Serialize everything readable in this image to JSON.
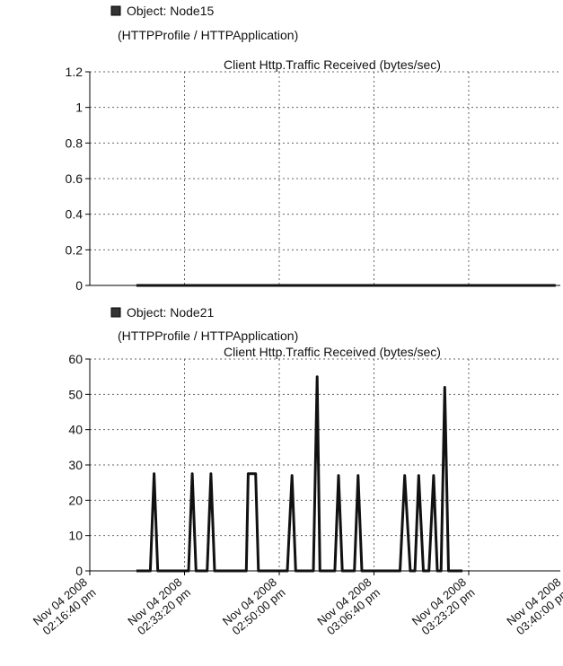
{
  "chart_data": [
    {
      "type": "line",
      "legend": "Object: Node15",
      "subtitle": "(HTTPProfile / HTTPApplication)",
      "title": "Client Http.Traffic Received (bytes/sec)",
      "ylim": [
        0,
        1.2
      ],
      "yticks": [
        "0",
        "0.2",
        "0.4",
        "0.6",
        "0.8",
        "1",
        "1.2"
      ],
      "grid": true,
      "series": [
        {
          "name": "Node15",
          "x": [
            0.5,
            5.0
          ],
          "y": [
            0,
            0
          ]
        }
      ]
    },
    {
      "type": "line",
      "legend": "Object: Node21",
      "subtitle": "(HTTPProfile / HTTPApplication)",
      "title": "Client Http.Traffic Received (bytes/sec)",
      "ylim": [
        0,
        60
      ],
      "yticks": [
        "0",
        "10",
        "20",
        "30",
        "40",
        "50",
        "60"
      ],
      "grid": true,
      "xticks": [
        [
          "Nov 04 2008",
          "02:16:40 pm"
        ],
        [
          "Nov 04 2008",
          "02:33:20 pm"
        ],
        [
          "Nov 04 2008",
          "02:50:00 pm"
        ],
        [
          "Nov 04 2008",
          "03:06:40 pm"
        ],
        [
          "Nov 04 2008",
          "03:23:20 pm"
        ],
        [
          "Nov 04 2008",
          "03:40:00 pm"
        ]
      ],
      "series": [
        {
          "name": "Node21",
          "x": [
            0.5,
            0.65,
            0.69,
            0.73,
            1.06,
            1.1,
            1.14,
            1.26,
            1.3,
            1.34,
            1.68,
            1.7,
            1.78,
            1.81,
            2.12,
            2.17,
            2.21,
            2.4,
            2.44,
            2.47,
            2.63,
            2.67,
            2.71,
            2.84,
            2.88,
            2.92,
            3.33,
            3.38,
            3.44,
            3.49,
            3.53,
            3.58,
            3.64,
            3.69,
            3.73,
            3.77,
            3.81,
            3.85,
            3.9,
            4.0
          ],
          "y": [
            0,
            0,
            27.5,
            0,
            0,
            27.5,
            0,
            0,
            27.5,
            0,
            0,
            27.5,
            27.5,
            0,
            0,
            27,
            0,
            0,
            55,
            0,
            0,
            27,
            0,
            0,
            27,
            0,
            0,
            27,
            0,
            0,
            27,
            0,
            0,
            27,
            0,
            0,
            52,
            0,
            0,
            0
          ]
        }
      ]
    }
  ]
}
